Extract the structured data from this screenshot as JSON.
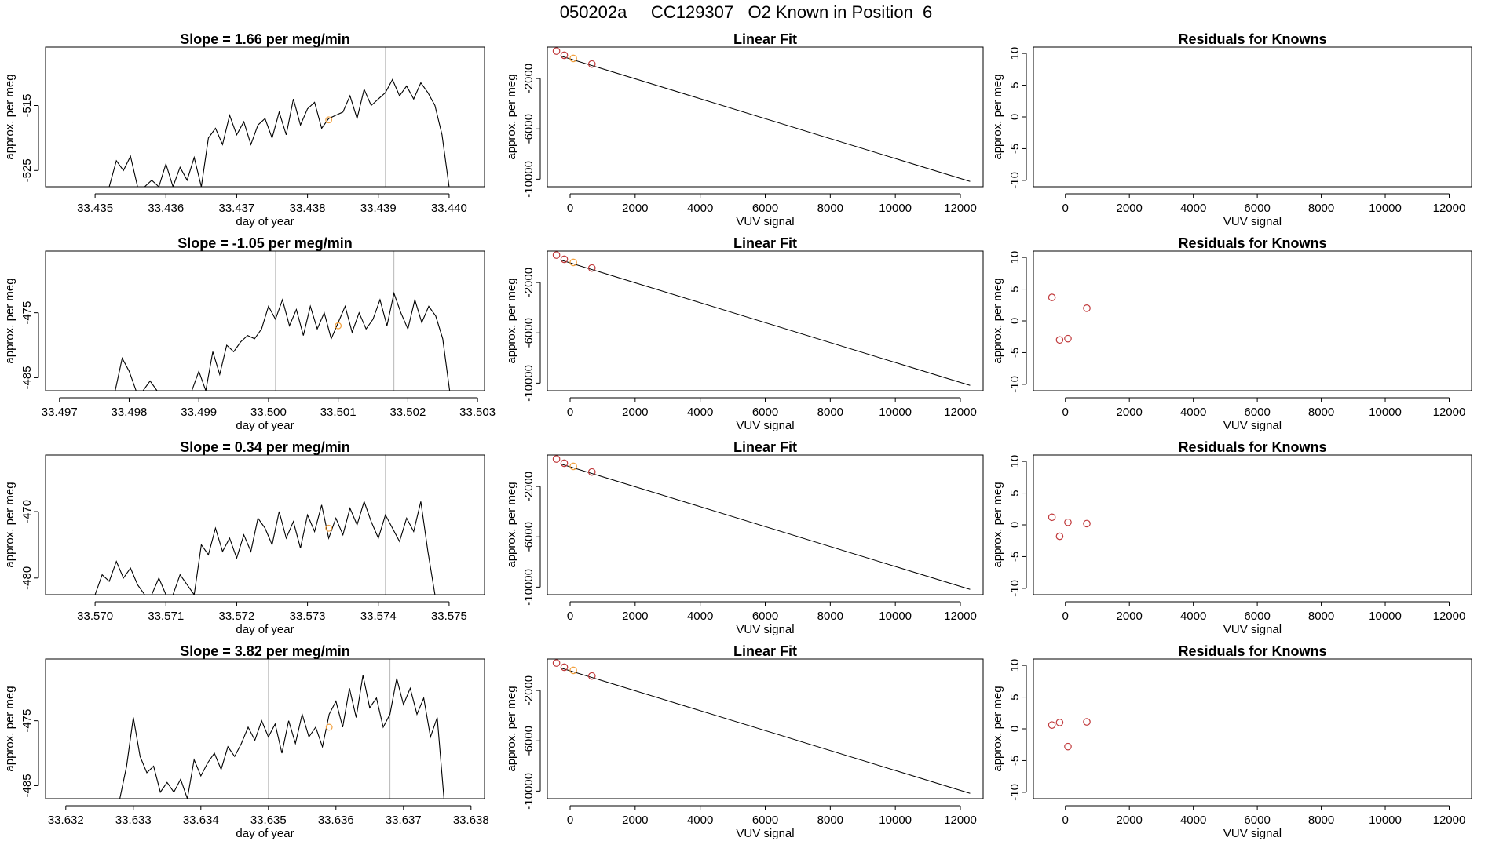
{
  "figure": {
    "title": "050202a     CC129307   O2 Known in Position  6",
    "colors": {
      "line": "#000000",
      "frame": "#000000",
      "vline": "#b8b8b8",
      "point_orange": "#f2a03d",
      "point_red": "#c0393b"
    }
  },
  "chart_data": [
    {
      "id": "r1-timeseries",
      "type": "line",
      "title": "Slope =  1.66  per meg/min",
      "xlabel": "day of year",
      "ylabel": "approx. per meg",
      "xlim": [
        33.4343,
        33.4405
      ],
      "ylim": [
        -527.5,
        -506
      ],
      "xticks": [
        "33.435",
        "33.436",
        "33.437",
        "33.438",
        "33.439",
        "33.440"
      ],
      "yticks": [
        "-515",
        "-525"
      ],
      "vlines": [
        33.4374,
        33.4391
      ],
      "marker": {
        "x": 33.4383,
        "y": -517.2
      },
      "series": [
        {
          "x": [
            33.4352,
            33.4353,
            33.4354,
            33.4355,
            33.4356,
            33.4357,
            33.4358,
            33.4359,
            33.436,
            33.4361,
            33.4362,
            33.4363,
            33.4364,
            33.4365,
            33.4366,
            33.4367,
            33.4368,
            33.4369,
            33.437,
            33.4371,
            33.4372,
            33.4373,
            33.4374,
            33.4375,
            33.4376,
            33.4377,
            33.4378,
            33.4379,
            33.438,
            33.4381,
            33.4382,
            33.4383,
            33.4384,
            33.4385,
            33.4386,
            33.4387,
            33.4388,
            33.4389,
            33.439,
            33.4391,
            33.4392,
            33.4393,
            33.4394,
            33.4395,
            33.4396,
            33.4397,
            33.4398,
            33.4399,
            33.44
          ],
          "y": [
            -527.5,
            -523.5,
            -525.0,
            -522.8,
            -527.5,
            -527.5,
            -526.5,
            -527.5,
            -524.0,
            -527.5,
            -524.5,
            -526.5,
            -523.0,
            -527.5,
            -520.0,
            -518.5,
            -521.0,
            -516.5,
            -519.5,
            -517.5,
            -521.0,
            -518.0,
            -517.0,
            -520.0,
            -516.0,
            -519.5,
            -514.0,
            -518.0,
            -515.5,
            -514.5,
            -518.5,
            -517.0,
            -516.5,
            -516.0,
            -513.5,
            -517.0,
            -512.5,
            -515.0,
            -514.0,
            -513.0,
            -511.0,
            -513.5,
            -512.0,
            -514.0,
            -511.5,
            -513.0,
            -515.0,
            -519.5,
            -527.5
          ]
        }
      ]
    },
    {
      "id": "r1-fit",
      "type": "scatter",
      "title": "Linear Fit",
      "xlabel": "VUV signal",
      "ylabel": "approx. per meg",
      "xlim": [
        -700,
        12700
      ],
      "ylim": [
        -10600,
        500
      ],
      "xticks": [
        "0",
        "2000",
        "4000",
        "6000",
        "8000",
        "10000",
        "12000"
      ],
      "yticks": [
        "-2000",
        "-6000",
        "-10000"
      ],
      "line": {
        "x": [
          -300,
          12300
        ],
        "y": [
          -200,
          -10180
        ]
      },
      "points": [
        {
          "x": -420,
          "y": 180,
          "color": "red"
        },
        {
          "x": -180,
          "y": -150,
          "color": "red"
        },
        {
          "x": 100,
          "y": -400,
          "color": "orange"
        },
        {
          "x": 670,
          "y": -850,
          "color": "red"
        }
      ]
    },
    {
      "id": "r1-residuals",
      "type": "scatter",
      "title": "Residuals for Knowns",
      "xlabel": "VUV signal",
      "ylabel": "approx. per meg",
      "xlim": [
        -1000,
        12700
      ],
      "ylim": [
        -11,
        11
      ],
      "xticks": [
        "0",
        "2000",
        "4000",
        "6000",
        "8000",
        "10000",
        "12000"
      ],
      "yticks": [
        "10",
        "5",
        "0",
        "-5",
        "-10"
      ],
      "points": []
    },
    {
      "id": "r2-timeseries",
      "type": "line",
      "title": "Slope =  -1.05  per meg/min",
      "xlabel": "day of year",
      "ylabel": "approx. per meg",
      "xlim": [
        33.4968,
        33.5031
      ],
      "ylim": [
        -487,
        -465.5
      ],
      "xticks": [
        "33.497",
        "33.498",
        "33.499",
        "33.500",
        "33.501",
        "33.502",
        "33.503"
      ],
      "yticks": [
        "-475",
        "-485"
      ],
      "vlines": [
        33.5001,
        33.5018
      ],
      "marker": {
        "x": 33.501,
        "y": -477.0
      },
      "series": [
        {
          "x": [
            33.4978,
            33.4979,
            33.498,
            33.4981,
            33.4982,
            33.4983,
            33.4984,
            33.4985,
            33.4986,
            33.4987,
            33.4988,
            33.4989,
            33.499,
            33.4991,
            33.4992,
            33.4993,
            33.4994,
            33.4995,
            33.4996,
            33.4997,
            33.4998,
            33.4999,
            33.5,
            33.5001,
            33.5002,
            33.5003,
            33.5004,
            33.5005,
            33.5006,
            33.5007,
            33.5008,
            33.5009,
            33.501,
            33.5011,
            33.5012,
            33.5013,
            33.5014,
            33.5015,
            33.5016,
            33.5017,
            33.5018,
            33.5019,
            33.502,
            33.5021,
            33.5022,
            33.5023,
            33.5024,
            33.5025,
            33.5026
          ],
          "y": [
            -487.0,
            -482.0,
            -484.0,
            -487.0,
            -487.0,
            -485.5,
            -487.0,
            -487.0,
            -487.0,
            -487.0,
            -487.0,
            -487.0,
            -484.0,
            -487.0,
            -481.0,
            -484.5,
            -480.0,
            -481.0,
            -479.5,
            -478.5,
            -479.0,
            -477.5,
            -474.0,
            -476.0,
            -473.0,
            -477.0,
            -474.5,
            -478.5,
            -474.0,
            -477.5,
            -475.0,
            -479.0,
            -476.5,
            -474.0,
            -478.0,
            -475.0,
            -477.5,
            -476.0,
            -473.0,
            -477.0,
            -472.0,
            -475.0,
            -477.5,
            -473.0,
            -476.5,
            -474.0,
            -475.5,
            -479.0,
            -487.0
          ]
        }
      ]
    },
    {
      "id": "r2-fit",
      "type": "scatter",
      "title": "Linear Fit",
      "xlabel": "VUV signal",
      "ylabel": "approx. per meg",
      "xlim": [
        -700,
        12700
      ],
      "ylim": [
        -10600,
        500
      ],
      "xticks": [
        "0",
        "2000",
        "4000",
        "6000",
        "8000",
        "10000",
        "12000"
      ],
      "yticks": [
        "-2000",
        "-6000",
        "-10000"
      ],
      "line": {
        "x": [
          -300,
          12300
        ],
        "y": [
          -200,
          -10180
        ]
      },
      "points": [
        {
          "x": -420,
          "y": 180,
          "color": "red"
        },
        {
          "x": -180,
          "y": -150,
          "color": "red"
        },
        {
          "x": 100,
          "y": -400,
          "color": "orange"
        },
        {
          "x": 670,
          "y": -850,
          "color": "red"
        }
      ]
    },
    {
      "id": "r2-residuals",
      "type": "scatter",
      "title": "Residuals for Knowns",
      "xlabel": "VUV signal",
      "ylabel": "approx. per meg",
      "xlim": [
        -1000,
        12700
      ],
      "ylim": [
        -11,
        11
      ],
      "xticks": [
        "0",
        "2000",
        "4000",
        "6000",
        "8000",
        "10000",
        "12000"
      ],
      "yticks": [
        "10",
        "5",
        "0",
        "-5",
        "-10"
      ],
      "points": [
        {
          "x": -420,
          "y": 3.7,
          "color": "red"
        },
        {
          "x": -180,
          "y": -3.0,
          "color": "red"
        },
        {
          "x": 80,
          "y": -2.8,
          "color": "red"
        },
        {
          "x": 670,
          "y": 2.0,
          "color": "red"
        }
      ]
    },
    {
      "id": "r3-timeseries",
      "type": "line",
      "title": "Slope =  0.34  per meg/min",
      "xlabel": "day of year",
      "ylabel": "approx. per meg",
      "xlim": [
        33.5693,
        33.5755
      ],
      "ylim": [
        -482.5,
        -461.5
      ],
      "xticks": [
        "33.570",
        "33.571",
        "33.572",
        "33.573",
        "33.574",
        "33.575"
      ],
      "yticks": [
        "-470",
        "-480"
      ],
      "vlines": [
        33.5724,
        33.5741
      ],
      "marker": {
        "x": 33.5733,
        "y": -472.5
      },
      "series": [
        {
          "x": [
            33.57,
            33.5701,
            33.5702,
            33.5703,
            33.5704,
            33.5705,
            33.5706,
            33.5707,
            33.5708,
            33.5709,
            33.571,
            33.5711,
            33.5712,
            33.5713,
            33.5714,
            33.5715,
            33.5716,
            33.5717,
            33.5718,
            33.5719,
            33.572,
            33.5721,
            33.5722,
            33.5723,
            33.5724,
            33.5725,
            33.5726,
            33.5727,
            33.5728,
            33.5729,
            33.573,
            33.5731,
            33.5732,
            33.5733,
            33.5734,
            33.5735,
            33.5736,
            33.5737,
            33.5738,
            33.5739,
            33.574,
            33.5741,
            33.5742,
            33.5743,
            33.5744,
            33.5745,
            33.5746,
            33.5747,
            33.5748
          ],
          "y": [
            -482.5,
            -479.5,
            -480.5,
            -477.5,
            -480.0,
            -478.5,
            -481.0,
            -482.5,
            -482.5,
            -480.0,
            -482.5,
            -482.5,
            -479.5,
            -481.0,
            -482.5,
            -475.0,
            -476.5,
            -472.5,
            -476.0,
            -474.0,
            -477.0,
            -473.5,
            -476.0,
            -471.0,
            -472.5,
            -475.0,
            -470.0,
            -474.0,
            -471.5,
            -475.5,
            -470.5,
            -473.0,
            -469.0,
            -474.0,
            -471.0,
            -473.5,
            -469.5,
            -472.0,
            -468.5,
            -471.5,
            -474.0,
            -470.5,
            -472.5,
            -474.5,
            -471.0,
            -473.0,
            -468.5,
            -476.0,
            -482.5
          ]
        }
      ]
    },
    {
      "id": "r3-fit",
      "type": "scatter",
      "title": "Linear Fit",
      "xlabel": "VUV signal",
      "ylabel": "approx. per meg",
      "xlim": [
        -700,
        12700
      ],
      "ylim": [
        -10600,
        500
      ],
      "xticks": [
        "0",
        "2000",
        "4000",
        "6000",
        "8000",
        "10000",
        "12000"
      ],
      "yticks": [
        "-2000",
        "-6000",
        "-10000"
      ],
      "line": {
        "x": [
          -300,
          12300
        ],
        "y": [
          -200,
          -10180
        ]
      },
      "points": [
        {
          "x": -420,
          "y": 180,
          "color": "red"
        },
        {
          "x": -180,
          "y": -150,
          "color": "red"
        },
        {
          "x": 100,
          "y": -400,
          "color": "orange"
        },
        {
          "x": 670,
          "y": -850,
          "color": "red"
        }
      ]
    },
    {
      "id": "r3-residuals",
      "type": "scatter",
      "title": "Residuals for Knowns",
      "xlabel": "VUV signal",
      "ylabel": "approx. per meg",
      "xlim": [
        -1000,
        12700
      ],
      "ylim": [
        -11,
        11
      ],
      "xticks": [
        "0",
        "2000",
        "4000",
        "6000",
        "8000",
        "10000",
        "12000"
      ],
      "yticks": [
        "10",
        "5",
        "0",
        "-5",
        "-10"
      ],
      "points": [
        {
          "x": -420,
          "y": 1.2,
          "color": "red"
        },
        {
          "x": -180,
          "y": -1.8,
          "color": "red"
        },
        {
          "x": 80,
          "y": 0.4,
          "color": "red"
        },
        {
          "x": 670,
          "y": 0.2,
          "color": "red"
        }
      ]
    },
    {
      "id": "r4-timeseries",
      "type": "line",
      "title": "Slope =  3.82  per meg/min",
      "xlabel": "day of year",
      "ylabel": "approx. per meg",
      "xlim": [
        33.6317,
        33.6382
      ],
      "ylim": [
        -487,
        -465.5
      ],
      "xticks": [
        "33.632",
        "33.633",
        "33.634",
        "33.635",
        "33.636",
        "33.637",
        "33.638"
      ],
      "yticks": [
        "-475",
        "-485"
      ],
      "vlines": [
        33.635,
        33.6368
      ],
      "marker": {
        "x": 33.6359,
        "y": -476.0
      },
      "series": [
        {
          "x": [
            33.6328,
            33.6329,
            33.633,
            33.6331,
            33.6332,
            33.6333,
            33.6334,
            33.6335,
            33.6336,
            33.6337,
            33.6338,
            33.6339,
            33.634,
            33.6341,
            33.6342,
            33.6343,
            33.6344,
            33.6345,
            33.6346,
            33.6347,
            33.6348,
            33.6349,
            33.635,
            33.6351,
            33.6352,
            33.6353,
            33.6354,
            33.6355,
            33.6356,
            33.6357,
            33.6358,
            33.6359,
            33.636,
            33.6361,
            33.6362,
            33.6363,
            33.6364,
            33.6365,
            33.6366,
            33.6367,
            33.6368,
            33.6369,
            33.637,
            33.6371,
            33.6372,
            33.6373,
            33.6374,
            33.6375,
            33.6376
          ],
          "y": [
            -487.0,
            -482.0,
            -474.5,
            -480.5,
            -483.0,
            -482.0,
            -486.0,
            -484.5,
            -486.0,
            -484.0,
            -487.0,
            -481.0,
            -483.5,
            -481.5,
            -480.0,
            -482.5,
            -479.0,
            -480.5,
            -478.5,
            -476.0,
            -478.0,
            -475.0,
            -477.5,
            -475.5,
            -480.0,
            -475.0,
            -478.5,
            -474.0,
            -477.5,
            -476.0,
            -479.0,
            -474.0,
            -472.0,
            -476.0,
            -470.0,
            -474.5,
            -468.0,
            -473.0,
            -471.5,
            -476.0,
            -474.0,
            -468.5,
            -472.5,
            -470.0,
            -474.0,
            -471.5,
            -477.5,
            -474.5,
            -487.0
          ]
        }
      ]
    },
    {
      "id": "r4-fit",
      "type": "scatter",
      "title": "Linear Fit",
      "xlabel": "VUV signal",
      "ylabel": "approx. per meg",
      "xlim": [
        -700,
        12700
      ],
      "ylim": [
        -10600,
        500
      ],
      "xticks": [
        "0",
        "2000",
        "4000",
        "6000",
        "8000",
        "10000",
        "12000"
      ],
      "yticks": [
        "-2000",
        "-6000",
        "-10000"
      ],
      "line": {
        "x": [
          -300,
          12300
        ],
        "y": [
          -200,
          -10180
        ]
      },
      "points": [
        {
          "x": -420,
          "y": 180,
          "color": "red"
        },
        {
          "x": -180,
          "y": -150,
          "color": "red"
        },
        {
          "x": 100,
          "y": -400,
          "color": "orange"
        },
        {
          "x": 670,
          "y": -850,
          "color": "red"
        }
      ]
    },
    {
      "id": "r4-residuals",
      "type": "scatter",
      "title": "Residuals for Knowns",
      "xlabel": "VUV signal",
      "ylabel": "approx. per meg",
      "xlim": [
        -1000,
        12700
      ],
      "ylim": [
        -11,
        11
      ],
      "xticks": [
        "0",
        "2000",
        "4000",
        "6000",
        "8000",
        "10000",
        "12000"
      ],
      "yticks": [
        "10",
        "5",
        "0",
        "-5",
        "-10"
      ],
      "points": [
        {
          "x": -420,
          "y": 0.6,
          "color": "red"
        },
        {
          "x": -180,
          "y": 1.0,
          "color": "red"
        },
        {
          "x": 80,
          "y": -2.8,
          "color": "red"
        },
        {
          "x": 670,
          "y": 1.1,
          "color": "red"
        }
      ]
    }
  ]
}
